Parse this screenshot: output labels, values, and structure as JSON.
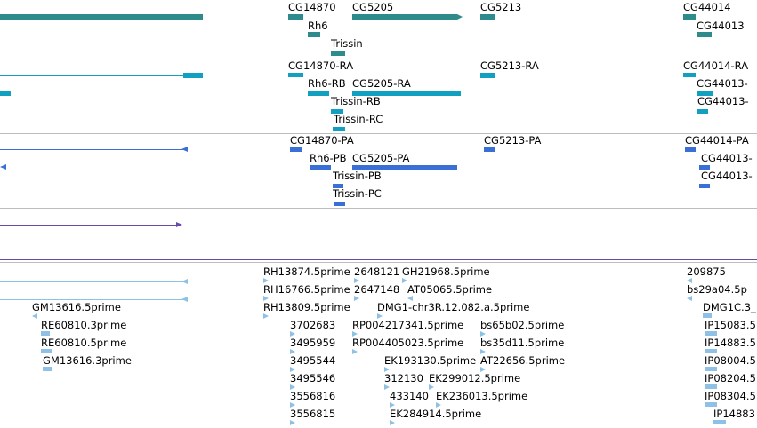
{
  "colors": {
    "gene": "#2e8b8b",
    "transcript_ra": "#11a0c0",
    "protein_pa": "#3a6fd6",
    "purple": "#6a4aa8",
    "est": "#8fc0e6",
    "separator": "#bdbdbd"
  },
  "gene_track": {
    "labels": [
      "CG14870",
      "CG5205",
      "CG5213",
      "CG44014",
      "Rh6",
      "CG44013",
      "Trissin"
    ]
  },
  "transcript_track": {
    "labels": [
      "CG14870-RA",
      "CG5213-RA",
      "CG44014-RA",
      "Rh6-RB",
      "CG5205-RA",
      "CG44013-",
      "Trissin-RB",
      "CG44013-",
      "Trissin-RC"
    ]
  },
  "protein_track": {
    "labels": [
      "CG14870-PA",
      "CG5213-PA",
      "CG44014-PA",
      "Rh6-PB",
      "CG5205-PA",
      "CG44013-",
      "Trissin-PB",
      "CG44013-",
      "Trissin-PC"
    ]
  },
  "est_track": {
    "labels": [
      "RH13874.5prime",
      "2648121",
      "GH21968.5prime",
      "209875",
      "RH16766.5prime",
      "2647148",
      "AT05065.5prime",
      "bs29a04.5p",
      "GM13616.5prime",
      "RH13809.5prime",
      "DMG1-chr3R.12.082.a.5prime",
      "DMG1C.3_",
      "RE60810.3prime",
      "3702683",
      "RP004217341.5prime",
      "bs65b02.5prime",
      "IP15083.5",
      "RE60810.5prime",
      "3495959",
      "RP004405023.5prime",
      "bs35d11.5prime",
      "IP14883.5",
      "GM13616.3prime",
      "3495544",
      "EK193130.5prime",
      "AT22656.5prime",
      "IP08004.5",
      "3495546",
      "312130",
      "EK299012.5prime",
      "IP08204.5",
      "3556816",
      "433140",
      "EK236013.5prime",
      "IP08304.5",
      "3556815",
      "EK284914.5prime",
      "IP14883"
    ]
  }
}
